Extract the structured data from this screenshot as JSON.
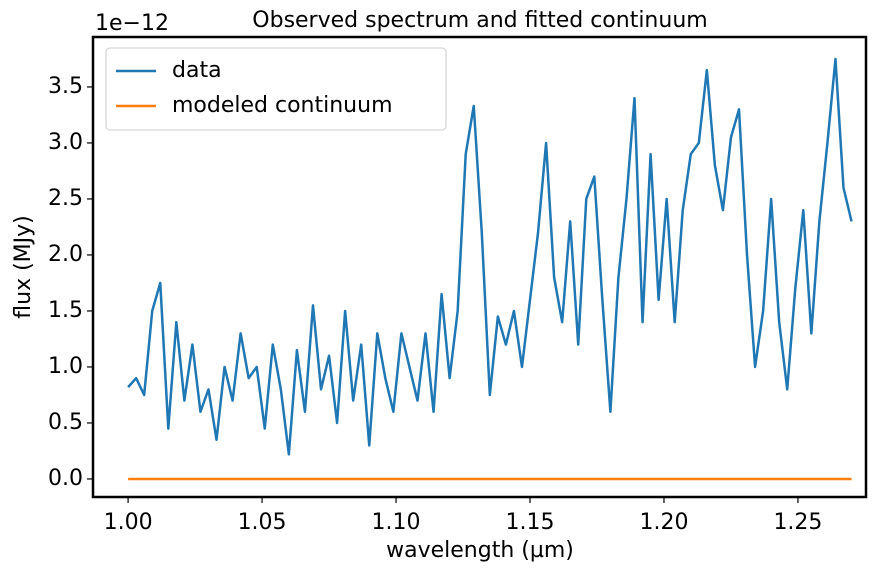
{
  "chart_data": {
    "type": "line",
    "title": "Observed spectrum and fitted continuum",
    "x_label": "wavelength (µm)",
    "y_label": "flux (MJy)",
    "y_offset_text": "1e−12",
    "x": [
      1.0,
      1.003,
      1.006,
      1.009,
      1.012,
      1.015,
      1.018,
      1.021,
      1.024,
      1.027,
      1.03,
      1.033,
      1.036,
      1.039,
      1.042,
      1.045,
      1.048,
      1.051,
      1.054,
      1.057,
      1.06,
      1.063,
      1.066,
      1.069,
      1.072,
      1.075,
      1.078,
      1.081,
      1.084,
      1.087,
      1.09,
      1.093,
      1.096,
      1.099,
      1.102,
      1.105,
      1.108,
      1.111,
      1.114,
      1.117,
      1.12,
      1.123,
      1.126,
      1.129,
      1.132,
      1.135,
      1.138,
      1.141,
      1.144,
      1.147,
      1.15,
      1.153,
      1.156,
      1.159,
      1.162,
      1.165,
      1.168,
      1.171,
      1.174,
      1.177,
      1.18,
      1.183,
      1.186,
      1.189,
      1.192,
      1.195,
      1.198,
      1.201,
      1.204,
      1.207,
      1.21,
      1.213,
      1.216,
      1.219,
      1.222,
      1.225,
      1.228,
      1.231,
      1.234,
      1.237,
      1.24,
      1.243,
      1.246,
      1.249,
      1.252,
      1.255,
      1.258,
      1.261,
      1.264,
      1.267,
      1.27
    ],
    "series": [
      {
        "name": "data",
        "color": "#1f77b4",
        "values": [
          0.82,
          0.9,
          0.75,
          1.5,
          1.75,
          0.45,
          1.4,
          0.7,
          1.2,
          0.6,
          0.8,
          0.35,
          1.0,
          0.7,
          1.3,
          0.9,
          1.0,
          0.45,
          1.2,
          0.8,
          0.22,
          1.15,
          0.6,
          1.55,
          0.8,
          1.1,
          0.5,
          1.5,
          0.7,
          1.2,
          0.3,
          1.3,
          0.9,
          0.6,
          1.3,
          1.0,
          0.7,
          1.3,
          0.6,
          1.65,
          0.9,
          1.5,
          2.9,
          3.33,
          2.2,
          0.75,
          1.45,
          1.2,
          1.5,
          1.0,
          1.6,
          2.2,
          3.0,
          1.8,
          1.4,
          2.3,
          1.2,
          2.5,
          2.7,
          1.6,
          0.6,
          1.8,
          2.5,
          3.4,
          1.4,
          2.9,
          1.6,
          2.5,
          1.4,
          2.4,
          2.9,
          3.0,
          3.65,
          2.8,
          2.4,
          3.05,
          3.3,
          2.0,
          1.0,
          1.5,
          2.5,
          1.4,
          0.8,
          1.7,
          2.4,
          1.3,
          2.3,
          3.0,
          3.75,
          2.6,
          2.3
        ]
      },
      {
        "name": "modeled continuum",
        "color": "#ff7f0e",
        "values": [
          0,
          0,
          0,
          0,
          0,
          0,
          0,
          0,
          0,
          0,
          0,
          0,
          0,
          0,
          0,
          0,
          0,
          0,
          0,
          0,
          0,
          0,
          0,
          0,
          0,
          0,
          0,
          0,
          0,
          0,
          0,
          0,
          0,
          0,
          0,
          0,
          0,
          0,
          0,
          0,
          0,
          0,
          0,
          0,
          0,
          0,
          0,
          0,
          0,
          0,
          0,
          0,
          0,
          0,
          0,
          0,
          0,
          0,
          0,
          0,
          0,
          0,
          0,
          0,
          0,
          0,
          0,
          0,
          0,
          0,
          0,
          0,
          0,
          0,
          0,
          0,
          0,
          0,
          0,
          0,
          0,
          0,
          0,
          0,
          0,
          0,
          0,
          0,
          0,
          0,
          0
        ]
      }
    ],
    "xlim": [
      0.9869,
      1.2754
    ],
    "ylim": [
      -0.161,
      3.946
    ],
    "xticks": [
      {
        "value": 1,
        "label": "1.00"
      },
      1.05,
      {
        "value": 1.1,
        "label": "1.10"
      },
      1.15,
      {
        "value": 1.2,
        "label": "1.20"
      },
      1.25
    ],
    "yticks": [
      {
        "value": 0,
        "label": "0.0"
      },
      0.5,
      {
        "value": 1,
        "label": "1.0"
      },
      1.5,
      {
        "value": 2,
        "label": "2.0"
      },
      2.5,
      {
        "value": 3,
        "label": "3.0"
      },
      3.5
    ],
    "grid": false,
    "legend": "upper left"
  }
}
